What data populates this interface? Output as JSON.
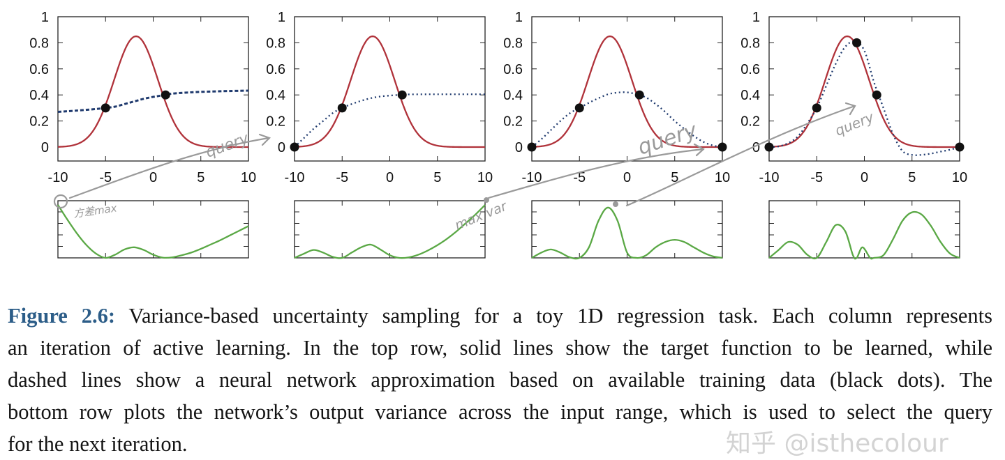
{
  "colors": {
    "target": "#b0323a",
    "approximation": "#1f3a6e",
    "variance": "#5aa845",
    "points": "#111111",
    "annotation": "#9a9a9a",
    "figure_label": "#2c5d88"
  },
  "chart_data": [
    {
      "type": "line",
      "panel": "top-1",
      "xlim": [
        -10,
        10
      ],
      "ylim": [
        -0.1,
        1
      ],
      "x_ticks": [
        "-10",
        "-5",
        "0",
        "5",
        "10"
      ],
      "y_ticks": [
        "1",
        "0.8",
        "0.6",
        "0.4",
        "0.2",
        "0"
      ],
      "series": [
        {
          "style": "solid",
          "function": "gaussian",
          "peak": 0.85,
          "center": -1.8,
          "sigma": 2.3
        },
        {
          "style": "dashed",
          "points": [
            [
              -10,
              0.27
            ],
            [
              -8,
              0.28
            ],
            [
              -6,
              0.292
            ],
            [
              -5,
              0.3
            ],
            [
              -4,
              0.31
            ],
            [
              -3,
              0.33
            ],
            [
              -2,
              0.35
            ],
            [
              -1,
              0.37
            ],
            [
              0,
              0.385
            ],
            [
              1,
              0.397
            ],
            [
              2,
              0.41
            ],
            [
              4,
              0.42
            ],
            [
              6,
              0.426
            ],
            [
              8,
              0.43
            ],
            [
              10,
              0.433
            ]
          ]
        }
      ],
      "training_points": [
        [
          -5,
          0.3
        ],
        [
          1.3,
          0.4
        ]
      ]
    },
    {
      "type": "line",
      "panel": "top-2",
      "xlim": [
        -10,
        10
      ],
      "ylim": [
        -0.1,
        1
      ],
      "x_ticks": [
        "-10",
        "-5",
        "0",
        "5",
        "10"
      ],
      "y_ticks": [
        "1",
        "0.8",
        "0.6",
        "0.4",
        "0.2",
        "0"
      ],
      "series": [
        {
          "style": "solid",
          "function": "gaussian",
          "peak": 0.85,
          "center": -1.8,
          "sigma": 2.3
        },
        {
          "style": "dotted",
          "points": [
            [
              -10,
              0
            ],
            [
              -9,
              0.07
            ],
            [
              -8,
              0.14
            ],
            [
              -7,
              0.2
            ],
            [
              -6,
              0.26
            ],
            [
              -5,
              0.3
            ],
            [
              -4,
              0.33
            ],
            [
              -3,
              0.355
            ],
            [
              -2,
              0.375
            ],
            [
              -1,
              0.388
            ],
            [
              0,
              0.395
            ],
            [
              1,
              0.4
            ],
            [
              2,
              0.404
            ],
            [
              5,
              0.405
            ],
            [
              10,
              0.405
            ]
          ]
        }
      ],
      "training_points": [
        [
          -10,
          0
        ],
        [
          -5,
          0.3
        ],
        [
          1.3,
          0.4
        ]
      ]
    },
    {
      "type": "line",
      "panel": "top-3",
      "xlim": [
        -10,
        10
      ],
      "ylim": [
        -0.1,
        1
      ],
      "x_ticks": [
        "-10",
        "-5",
        "0",
        "5",
        "10"
      ],
      "y_ticks": [
        "1",
        "0.8",
        "0.6",
        "0.4",
        "0.2",
        "0"
      ],
      "series": [
        {
          "style": "solid",
          "function": "gaussian",
          "peak": 0.85,
          "center": -1.8,
          "sigma": 2.3
        },
        {
          "style": "dotted",
          "points": [
            [
              -10,
              0
            ],
            [
              -9,
              0.06
            ],
            [
              -8,
              0.13
            ],
            [
              -7,
              0.2
            ],
            [
              -6,
              0.26
            ],
            [
              -5,
              0.3
            ],
            [
              -4,
              0.34
            ],
            [
              -3,
              0.375
            ],
            [
              -2,
              0.405
            ],
            [
              -1,
              0.418
            ],
            [
              0,
              0.42
            ],
            [
              1,
              0.405
            ],
            [
              2,
              0.38
            ],
            [
              3,
              0.33
            ],
            [
              4,
              0.27
            ],
            [
              5,
              0.2
            ],
            [
              6,
              0.14
            ],
            [
              7,
              0.085
            ],
            [
              8,
              0.04
            ],
            [
              9,
              0.012
            ],
            [
              10,
              0
            ]
          ]
        }
      ],
      "training_points": [
        [
          -10,
          0
        ],
        [
          -5,
          0.3
        ],
        [
          1.3,
          0.4
        ],
        [
          10,
          0
        ]
      ]
    },
    {
      "type": "line",
      "panel": "top-4",
      "xlim": [
        -10,
        10
      ],
      "ylim": [
        -0.1,
        1
      ],
      "x_ticks": [
        "-10",
        "-5",
        "0",
        "5",
        "10"
      ],
      "y_ticks": [
        "1",
        "0.8",
        "0.6",
        "0.4",
        "0.2",
        "0"
      ],
      "series": [
        {
          "style": "solid",
          "function": "gaussian",
          "peak": 0.85,
          "center": -1.8,
          "sigma": 2.3
        },
        {
          "style": "dotted",
          "points": [
            [
              -10,
              0
            ],
            [
              -9,
              0.005
            ],
            [
              -8,
              0.03
            ],
            [
              -7,
              0.08
            ],
            [
              -6,
              0.18
            ],
            [
              -5,
              0.3
            ],
            [
              -4,
              0.47
            ],
            [
              -3,
              0.64
            ],
            [
              -2,
              0.77
            ],
            [
              -1,
              0.81
            ],
            [
              0,
              0.74
            ],
            [
              1,
              0.5
            ],
            [
              2,
              0.3
            ],
            [
              3,
              0.1
            ],
            [
              4,
              -0.03
            ],
            [
              5,
              -0.06
            ],
            [
              6,
              -0.06
            ],
            [
              7,
              -0.05
            ],
            [
              8,
              -0.035
            ],
            [
              9,
              -0.02
            ],
            [
              10,
              0
            ]
          ]
        }
      ],
      "training_points": [
        [
          -10,
          0
        ],
        [
          -5,
          0.3
        ],
        [
          -0.8,
          0.8
        ],
        [
          1.3,
          0.4
        ],
        [
          10,
          0
        ]
      ]
    },
    {
      "type": "line",
      "panel": "bottom-1",
      "xlim": [
        -10,
        10
      ],
      "ylim": [
        0,
        1
      ],
      "series": [
        {
          "style": "solid",
          "points": [
            [
              -10,
              1
            ],
            [
              -9,
              0.72
            ],
            [
              -8,
              0.46
            ],
            [
              -7,
              0.24
            ],
            [
              -6,
              0.08
            ],
            [
              -5,
              0
            ],
            [
              -4,
              0.06
            ],
            [
              -3,
              0.16
            ],
            [
              -2,
              0.2
            ],
            [
              -1,
              0.15
            ],
            [
              0,
              0.06
            ],
            [
              1,
              0.005
            ],
            [
              2,
              0.01
            ],
            [
              3,
              0.05
            ],
            [
              4,
              0.1
            ],
            [
              5,
              0.17
            ],
            [
              6,
              0.25
            ],
            [
              7,
              0.33
            ],
            [
              8,
              0.42
            ],
            [
              9,
              0.51
            ],
            [
              10,
              0.6
            ]
          ]
        }
      ]
    },
    {
      "type": "line",
      "panel": "bottom-2",
      "xlim": [
        -10,
        10
      ],
      "ylim": [
        0,
        1
      ],
      "series": [
        {
          "style": "solid",
          "points": [
            [
              -10,
              0
            ],
            [
              -9,
              0.08
            ],
            [
              -8,
              0.15
            ],
            [
              -7,
              0.1
            ],
            [
              -6,
              0.02
            ],
            [
              -5,
              0
            ],
            [
              -4,
              0.1
            ],
            [
              -3,
              0.2
            ],
            [
              -2,
              0.25
            ],
            [
              -1,
              0.16
            ],
            [
              0,
              0.05
            ],
            [
              1,
              0
            ],
            [
              2,
              0.01
            ],
            [
              3,
              0.06
            ],
            [
              4,
              0.14
            ],
            [
              5,
              0.24
            ],
            [
              6,
              0.36
            ],
            [
              7,
              0.5
            ],
            [
              8,
              0.66
            ],
            [
              9,
              0.82
            ],
            [
              10,
              1
            ]
          ]
        }
      ]
    },
    {
      "type": "line",
      "panel": "bottom-3",
      "xlim": [
        -10,
        10
      ],
      "ylim": [
        0,
        1
      ],
      "series": [
        {
          "style": "solid",
          "points": [
            [
              -10,
              0
            ],
            [
              -9,
              0.1
            ],
            [
              -8,
              0.16
            ],
            [
              -7,
              0.1
            ],
            [
              -6,
              0.01
            ],
            [
              -5,
              0
            ],
            [
              -4,
              0.2
            ],
            [
              -3,
              0.7
            ],
            [
              -2,
              0.95
            ],
            [
              -1,
              0.7
            ],
            [
              0,
              0.1
            ],
            [
              1,
              0
            ],
            [
              2,
              0.05
            ],
            [
              3,
              0.2
            ],
            [
              4,
              0.3
            ],
            [
              5,
              0.34
            ],
            [
              6,
              0.3
            ],
            [
              7,
              0.2
            ],
            [
              8,
              0.1
            ],
            [
              9,
              0.03
            ],
            [
              10,
              0
            ]
          ]
        }
      ]
    },
    {
      "type": "line",
      "panel": "bottom-4",
      "xlim": [
        -10,
        10
      ],
      "ylim": [
        0,
        1
      ],
      "series": [
        {
          "style": "solid",
          "points": [
            [
              -10,
              0
            ],
            [
              -9,
              0.15
            ],
            [
              -8,
              0.3
            ],
            [
              -7,
              0.25
            ],
            [
              -6,
              0.06
            ],
            [
              -5,
              0
            ],
            [
              -4,
              0.3
            ],
            [
              -3,
              0.62
            ],
            [
              -2,
              0.5
            ],
            [
              -1.2,
              0.05
            ],
            [
              -0.8,
              0
            ],
            [
              -0.2,
              0.2
            ],
            [
              0.6,
              0
            ],
            [
              1,
              0
            ],
            [
              2,
              0.05
            ],
            [
              3,
              0.35
            ],
            [
              4,
              0.7
            ],
            [
              5,
              0.86
            ],
            [
              6,
              0.82
            ],
            [
              7,
              0.6
            ],
            [
              8,
              0.3
            ],
            [
              9,
              0.08
            ],
            [
              10,
              0
            ]
          ]
        }
      ]
    }
  ],
  "annotations": {
    "query_1": "query",
    "variance_max": "方差max",
    "max_var": "max var",
    "query_2": "query",
    "query_3": "query"
  },
  "caption": {
    "label": "Figure 2.6:",
    "lines": [
      " Variance-based uncertainty sampling for a toy 1D regression task. Each column represents",
      "an iteration of active learning. In the top row, solid lines show the target function to be learned, while",
      "dashed lines show a neural network approximation based on available training data (black dots). The",
      "bottom row plots the network’s output variance across the input range, which is used to select the query",
      "for the next iteration."
    ]
  },
  "watermark": "知乎 @isthecolour"
}
